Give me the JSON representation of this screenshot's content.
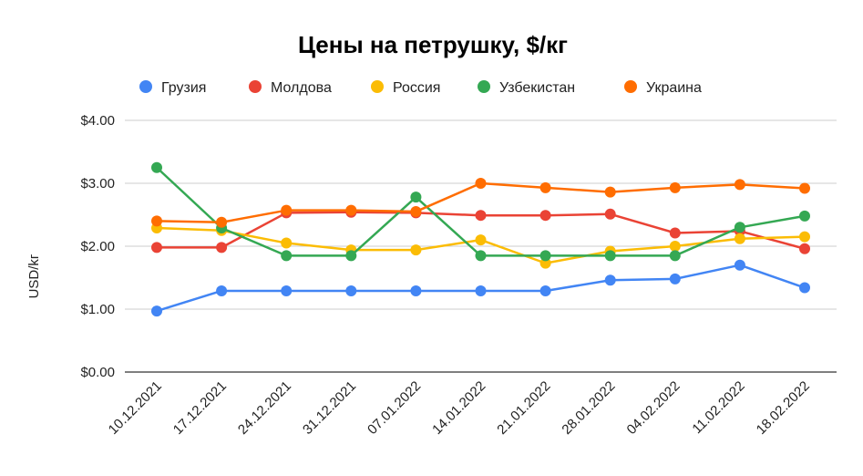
{
  "chart_data": {
    "type": "line",
    "title": "Цены на петрушку, $/кг",
    "xlabel": "",
    "ylabel": "USD/kг",
    "categories": [
      "10.12.2021",
      "17.12.2021",
      "24.12.2021",
      "31.12.2021",
      "07.01.2022",
      "14.01.2022",
      "21.01.2022",
      "28.01.2022",
      "04.02.2022",
      "11.02.2022",
      "18.02.2022"
    ],
    "ylim": [
      0,
      4
    ],
    "yticks": [
      0,
      1,
      2,
      3,
      4
    ],
    "ytick_labels": [
      "$0.00",
      "$1.00",
      "$2.00",
      "$3.00",
      "$4.00"
    ],
    "grid": true,
    "legend_position": "top",
    "series": [
      {
        "name": "Грузия",
        "color": "#4285F4",
        "values": [
          0.97,
          1.29,
          1.29,
          1.29,
          1.29,
          1.29,
          1.29,
          1.46,
          1.48,
          1.7,
          1.34
        ]
      },
      {
        "name": "Молдова",
        "color": "#EA4335",
        "values": [
          1.98,
          1.98,
          2.53,
          2.54,
          2.53,
          2.49,
          2.49,
          2.51,
          2.21,
          2.24,
          1.96
        ]
      },
      {
        "name": "Россия",
        "color": "#FBBC04",
        "values": [
          2.29,
          2.25,
          2.05,
          1.94,
          1.94,
          2.1,
          1.73,
          1.92,
          2.0,
          2.12,
          2.15
        ]
      },
      {
        "name": "Узбекистан",
        "color": "#34A853",
        "values": [
          3.25,
          2.29,
          1.85,
          1.85,
          2.78,
          1.85,
          1.85,
          1.85,
          1.85,
          2.3,
          2.48
        ]
      },
      {
        "name": "Украина",
        "color": "#FF6D01",
        "values": [
          2.4,
          2.38,
          2.57,
          2.57,
          2.55,
          3.0,
          2.93,
          2.86,
          2.93,
          2.98,
          2.92
        ]
      }
    ]
  }
}
